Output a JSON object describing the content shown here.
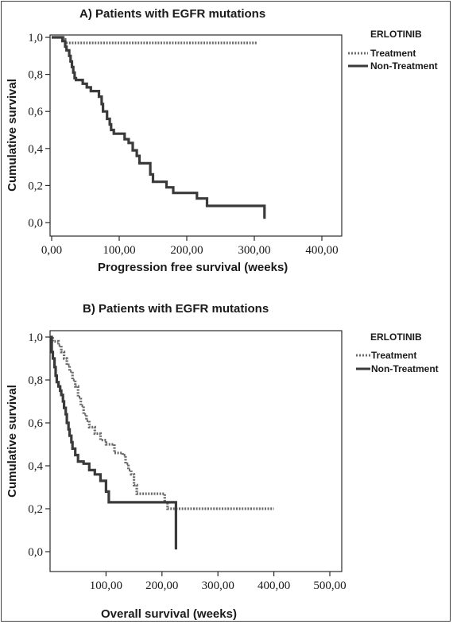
{
  "chart_data": [
    {
      "type": "line",
      "title": "A) Patients with EGFR mutations",
      "xlabel": "Progression free survival (weeks)",
      "ylabel": "Cumulative survival",
      "xlim": [
        0,
        400
      ],
      "ylim": [
        0,
        1
      ],
      "x_tick_labels": [
        "0,00",
        "100,00",
        "200,00",
        "300,00",
        "400,00"
      ],
      "y_tick_labels": [
        "0,0",
        "0,2",
        "0,4",
        "0,6",
        "0,8",
        "1,0"
      ],
      "legend_title": "ERLOTINIB",
      "legend_position": "right",
      "grid": false,
      "series": [
        {
          "name": "Treatment",
          "style": "dotted",
          "color": "#6b6b6b",
          "x": [
            0,
            10,
            20,
            305
          ],
          "y": [
            1.0,
            1.0,
            0.97,
            0.97
          ]
        },
        {
          "name": "Non-Treatment",
          "style": "solid",
          "color": "#3a3a3a",
          "x": [
            0,
            10,
            16,
            20,
            22,
            26,
            28,
            30,
            32,
            34,
            36,
            40,
            46,
            52,
            58,
            66,
            70,
            74,
            76,
            82,
            86,
            88,
            92,
            96,
            100,
            108,
            114,
            120,
            126,
            130,
            134,
            140,
            146,
            150,
            156,
            160,
            170,
            180,
            200,
            215,
            230,
            290,
            315,
            315
          ],
          "y": [
            1.0,
            1.0,
            0.98,
            0.95,
            0.93,
            0.9,
            0.87,
            0.84,
            0.81,
            0.78,
            0.77,
            0.77,
            0.75,
            0.73,
            0.71,
            0.71,
            0.68,
            0.64,
            0.6,
            0.56,
            0.53,
            0.5,
            0.48,
            0.48,
            0.48,
            0.45,
            0.43,
            0.39,
            0.36,
            0.32,
            0.32,
            0.32,
            0.26,
            0.22,
            0.22,
            0.22,
            0.19,
            0.16,
            0.16,
            0.13,
            0.09,
            0.09,
            0.09,
            0.02
          ]
        }
      ]
    },
    {
      "type": "line",
      "title": "B) Patients with EGFR mutations",
      "xlabel": "Overall survival (weeks)",
      "ylabel": "Cumulative survival",
      "xlim": [
        0,
        500
      ],
      "ylim": [
        0,
        1
      ],
      "x_tick_labels": [
        "100,00",
        "200,00",
        "300,00",
        "400,00",
        "500,00"
      ],
      "y_tick_labels": [
        "0,0",
        "0,2",
        "0,4",
        "0,6",
        "0,8",
        "1,0"
      ],
      "legend_title": "ERLOTINIB",
      "legend_position": "right",
      "grid": false,
      "series": [
        {
          "name": "Treatment",
          "style": "dotted",
          "color": "#6b6b6b",
          "x": [
            0,
            5,
            10,
            15,
            20,
            25,
            30,
            35,
            40,
            45,
            50,
            55,
            60,
            65,
            70,
            80,
            85,
            90,
            95,
            100,
            110,
            115,
            120,
            130,
            135,
            140,
            145,
            150,
            155,
            170,
            200,
            205,
            210,
            220,
            400
          ],
          "y": [
            1.0,
            0.98,
            0.98,
            0.96,
            0.93,
            0.9,
            0.87,
            0.84,
            0.8,
            0.77,
            0.72,
            0.68,
            0.64,
            0.61,
            0.58,
            0.55,
            0.55,
            0.52,
            0.52,
            0.5,
            0.5,
            0.46,
            0.46,
            0.45,
            0.41,
            0.38,
            0.36,
            0.31,
            0.27,
            0.27,
            0.27,
            0.23,
            0.2,
            0.2,
            0.2
          ]
        },
        {
          "name": "Non-Treatment",
          "style": "solid",
          "color": "#3a3a3a",
          "x": [
            0,
            3,
            5,
            8,
            10,
            12,
            15,
            18,
            20,
            23,
            25,
            28,
            30,
            33,
            35,
            38,
            40,
            45,
            50,
            55,
            60,
            65,
            70,
            80,
            90,
            100,
            105,
            110,
            225,
            225
          ],
          "y": [
            1.0,
            0.93,
            0.9,
            0.86,
            0.82,
            0.79,
            0.77,
            0.75,
            0.73,
            0.7,
            0.67,
            0.64,
            0.6,
            0.57,
            0.54,
            0.51,
            0.48,
            0.45,
            0.42,
            0.42,
            0.41,
            0.41,
            0.38,
            0.36,
            0.33,
            0.28,
            0.23,
            0.23,
            0.23,
            0.01
          ]
        }
      ]
    }
  ]
}
